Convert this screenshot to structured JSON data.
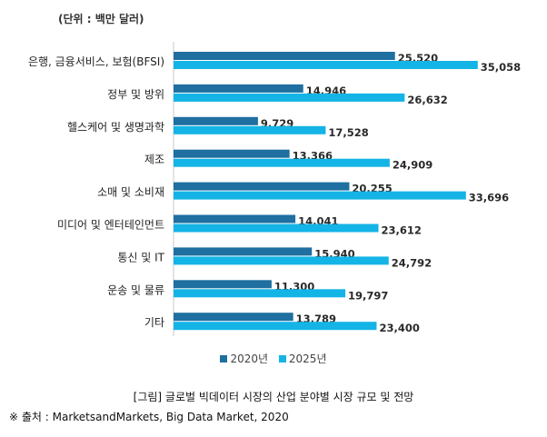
{
  "unit_label": "(단위 : 백만 달러)",
  "caption": "[그림] 글로벌 빅데이터 시장의 산업 분야별 시장 규모 및 전망",
  "source": "※ 출처 : MarketsandMarkets, Big Data Market, 2020",
  "chart_data": {
    "type": "bar",
    "orientation": "horizontal",
    "title": "",
    "xlabel": "",
    "ylabel": "",
    "xlim": [
      0,
      40000
    ],
    "grid": false,
    "legend_position": "bottom",
    "categories": [
      "은행, 금융서비스, 보험(BFSI)",
      "정부 및 방위",
      "헬스케어 및 생명과학",
      "제조",
      "소매 및 소비재",
      "미디어 및 엔터테인먼트",
      "통신 및 IT",
      "운송 및 물류",
      "기타"
    ],
    "series": [
      {
        "name": "2020년",
        "color": "#1F6FA0",
        "values": [
          25520,
          14946,
          9729,
          13366,
          20255,
          14041,
          15940,
          11300,
          13789
        ]
      },
      {
        "name": "2025년",
        "color": "#14B4E6",
        "values": [
          35058,
          26632,
          17528,
          24909,
          33696,
          23612,
          24792,
          19797,
          23400
        ]
      }
    ]
  }
}
